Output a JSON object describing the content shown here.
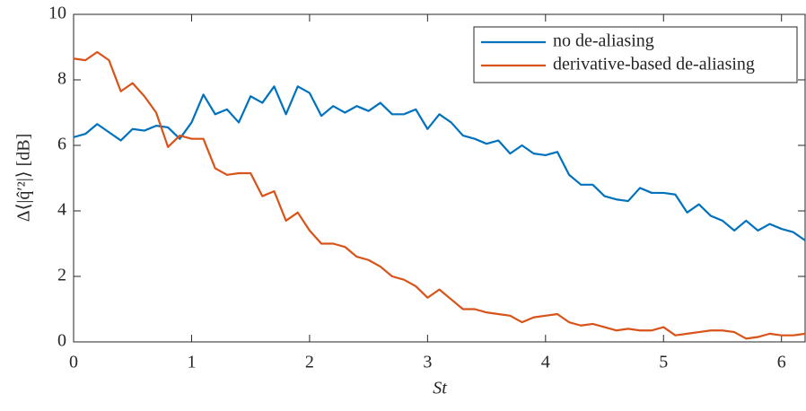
{
  "chart_data": {
    "type": "line",
    "xlabel": "St",
    "ylabel": "Δ⟨|q̂′²|⟩ [dB]",
    "x": [
      0,
      0.1,
      0.2,
      0.3,
      0.4,
      0.5,
      0.6,
      0.7,
      0.8,
      0.9,
      1,
      1.1,
      1.2,
      1.3,
      1.4,
      1.5,
      1.6,
      1.7,
      1.8,
      1.9,
      2,
      2.1,
      2.2,
      2.3,
      2.4,
      2.5,
      2.6,
      2.7,
      2.8,
      2.9,
      3,
      3.1,
      3.2,
      3.3,
      3.4,
      3.5,
      3.6,
      3.7,
      3.8,
      3.9,
      4,
      4.1,
      4.2,
      4.3,
      4.4,
      4.5,
      4.6,
      4.7,
      4.8,
      4.9,
      5,
      5.1,
      5.2,
      5.3,
      5.4,
      5.5,
      5.6,
      5.7,
      5.8,
      5.9,
      6,
      6.1,
      6.2
    ],
    "series": [
      {
        "name": "no de-aliasing",
        "color": "#0072bd",
        "values": [
          6.25,
          6.35,
          6.65,
          6.4,
          6.15,
          6.5,
          6.45,
          6.6,
          6.55,
          6.2,
          6.7,
          7.55,
          6.95,
          7.1,
          6.7,
          7.5,
          7.3,
          7.8,
          6.95,
          7.8,
          7.6,
          6.9,
          7.2,
          7.0,
          7.2,
          7.05,
          7.3,
          6.95,
          6.95,
          7.1,
          6.5,
          6.95,
          6.7,
          6.3,
          6.2,
          6.05,
          6.15,
          5.75,
          6.0,
          5.75,
          5.7,
          5.8,
          5.1,
          4.8,
          4.8,
          4.45,
          4.35,
          4.3,
          4.7,
          4.55,
          4.55,
          4.5,
          3.95,
          4.2,
          3.85,
          3.7,
          3.4,
          3.7,
          3.4,
          3.6,
          3.45,
          3.35,
          3.1
        ]
      },
      {
        "name": "derivative-based de-aliasing",
        "color": "#d95319",
        "values": [
          8.65,
          8.6,
          8.85,
          8.6,
          7.65,
          7.9,
          7.5,
          7.0,
          5.95,
          6.3,
          6.2,
          6.2,
          5.3,
          5.1,
          5.15,
          5.15,
          4.45,
          4.6,
          3.7,
          3.95,
          3.4,
          3.0,
          3.0,
          2.9,
          2.6,
          2.5,
          2.3,
          2.0,
          1.9,
          1.7,
          1.35,
          1.6,
          1.3,
          1.0,
          1.0,
          0.9,
          0.85,
          0.8,
          0.6,
          0.75,
          0.8,
          0.85,
          0.6,
          0.5,
          0.55,
          0.45,
          0.35,
          0.4,
          0.35,
          0.35,
          0.45,
          0.2,
          0.25,
          0.3,
          0.35,
          0.35,
          0.3,
          0.1,
          0.15,
          0.25,
          0.2,
          0.2,
          0.25
        ]
      }
    ],
    "xlim": [
      0,
      6.2
    ],
    "xticks": [
      0,
      1,
      2,
      3,
      4,
      5,
      6
    ],
    "ylim": [
      0,
      10
    ],
    "yticks": [
      0,
      2,
      4,
      6,
      8,
      10
    ],
    "legend": "northeast"
  }
}
